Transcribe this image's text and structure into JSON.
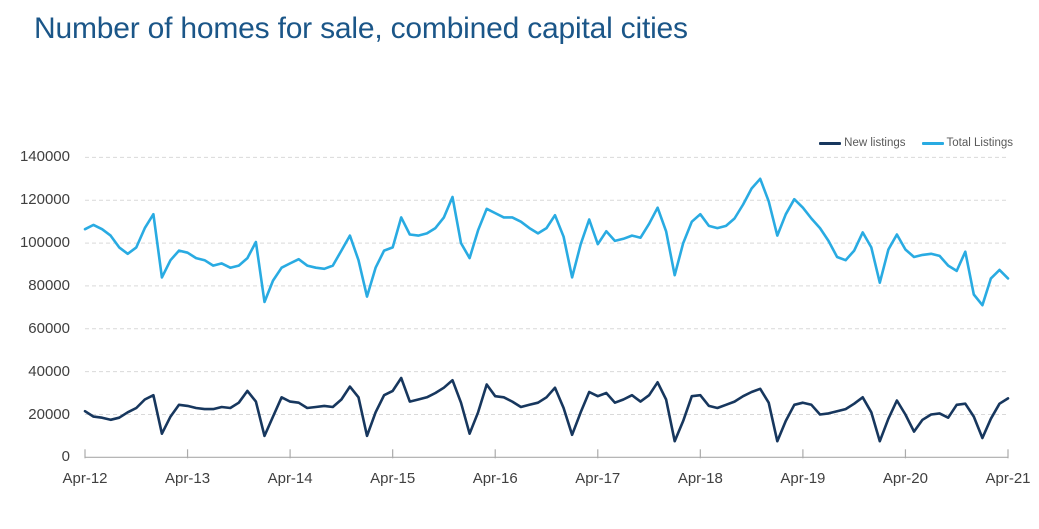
{
  "title": "Number of homes for sale, combined capital cities",
  "colors": {
    "title": "#1B5688",
    "axis_text": "#404040",
    "gridline": "#D9D9D9",
    "axis_line": "#ABABAB",
    "background": "#FFFFFF",
    "new_listings": "#17375E",
    "total_listings": "#29ABE2"
  },
  "legend": {
    "position": "top-right",
    "items": [
      {
        "label": "New listings",
        "color": "#17375E"
      },
      {
        "label": "Total Listings",
        "color": "#29ABE2"
      }
    ]
  },
  "chart_data": {
    "type": "line",
    "title": "Number of homes for sale, combined capital cities",
    "xlabel": "",
    "ylabel": "",
    "ylim": [
      0,
      140000
    ],
    "y_ticks": [
      0,
      20000,
      40000,
      60000,
      80000,
      100000,
      120000,
      140000
    ],
    "x_tick_labels": [
      "Apr-12",
      "Apr-13",
      "Apr-14",
      "Apr-15",
      "Apr-16",
      "Apr-17",
      "Apr-18",
      "Apr-19",
      "Apr-20",
      "Apr-21"
    ],
    "grid": "horizontal-dashed",
    "legend_position": "top-right",
    "x_months": [
      "Apr-12",
      "May-12",
      "Jun-12",
      "Jul-12",
      "Aug-12",
      "Sep-12",
      "Oct-12",
      "Nov-12",
      "Dec-12",
      "Jan-13",
      "Feb-13",
      "Mar-13",
      "Apr-13",
      "May-13",
      "Jun-13",
      "Jul-13",
      "Aug-13",
      "Sep-13",
      "Oct-13",
      "Nov-13",
      "Dec-13",
      "Jan-14",
      "Feb-14",
      "Mar-14",
      "Apr-14",
      "May-14",
      "Jun-14",
      "Jul-14",
      "Aug-14",
      "Sep-14",
      "Oct-14",
      "Nov-14",
      "Dec-14",
      "Jan-15",
      "Feb-15",
      "Mar-15",
      "Apr-15",
      "May-15",
      "Jun-15",
      "Jul-15",
      "Aug-15",
      "Sep-15",
      "Oct-15",
      "Nov-15",
      "Dec-15",
      "Jan-16",
      "Feb-16",
      "Mar-16",
      "Apr-16",
      "May-16",
      "Jun-16",
      "Jul-16",
      "Aug-16",
      "Sep-16",
      "Oct-16",
      "Nov-16",
      "Dec-16",
      "Jan-17",
      "Feb-17",
      "Mar-17",
      "Apr-17",
      "May-17",
      "Jun-17",
      "Jul-17",
      "Aug-17",
      "Sep-17",
      "Oct-17",
      "Nov-17",
      "Dec-17",
      "Jan-18",
      "Feb-18",
      "Mar-18",
      "Apr-18",
      "May-18",
      "Jun-18",
      "Jul-18",
      "Aug-18",
      "Sep-18",
      "Oct-18",
      "Nov-18",
      "Dec-18",
      "Jan-19",
      "Feb-19",
      "Mar-19",
      "Apr-19",
      "May-19",
      "Jun-19",
      "Jul-19",
      "Aug-19",
      "Sep-19",
      "Oct-19",
      "Nov-19",
      "Dec-19",
      "Jan-20",
      "Feb-20",
      "Mar-20",
      "Apr-20",
      "May-20",
      "Jun-20",
      "Jul-20",
      "Aug-20",
      "Sep-20",
      "Oct-20",
      "Nov-20",
      "Dec-20",
      "Jan-21",
      "Feb-21",
      "Mar-21",
      "Apr-21"
    ],
    "series": [
      {
        "name": "New listings",
        "color": "#17375E",
        "values": [
          21500,
          19000,
          18500,
          17500,
          18500,
          21000,
          23000,
          27000,
          29000,
          11000,
          19000,
          24500,
          24000,
          23000,
          22500,
          22500,
          23500,
          23000,
          25500,
          31000,
          26000,
          10000,
          19000,
          28000,
          26000,
          25500,
          23000,
          23500,
          24000,
          23500,
          27000,
          33000,
          28000,
          10000,
          21000,
          29000,
          31000,
          37000,
          26000,
          27000,
          28000,
          30000,
          32500,
          36000,
          25500,
          11000,
          21000,
          34000,
          28500,
          28000,
          26000,
          23500,
          24500,
          25500,
          28000,
          32500,
          23000,
          10500,
          21000,
          30500,
          28500,
          30000,
          25500,
          27000,
          29000,
          26000,
          29000,
          35000,
          27000,
          7500,
          17000,
          28500,
          29000,
          24000,
          23000,
          24500,
          26000,
          28500,
          30500,
          32000,
          25500,
          7500,
          17000,
          24500,
          25500,
          24500,
          20000,
          20500,
          21500,
          22500,
          25000,
          28000,
          21000,
          7500,
          18000,
          26500,
          20000,
          12000,
          17500,
          20000,
          20500,
          18500,
          24500,
          25000,
          19000,
          9000,
          18000,
          25000,
          27500
        ]
      },
      {
        "name": "Total Listings",
        "color": "#29ABE2",
        "values": [
          106500,
          108500,
          106500,
          103500,
          98000,
          95000,
          98000,
          107000,
          113500,
          84000,
          92000,
          96500,
          95500,
          93000,
          92000,
          89500,
          90500,
          88500,
          89500,
          93000,
          100500,
          72500,
          82500,
          88500,
          90500,
          92500,
          89500,
          88500,
          88000,
          89500,
          96500,
          103500,
          92000,
          75000,
          88500,
          96500,
          98000,
          112000,
          104000,
          103500,
          104500,
          107000,
          112000,
          121500,
          100000,
          93000,
          106000,
          116000,
          114000,
          112000,
          112000,
          110000,
          107000,
          104500,
          107000,
          113000,
          103000,
          84000,
          99500,
          111000,
          99500,
          105500,
          101000,
          102000,
          103500,
          102500,
          109000,
          116500,
          105500,
          85000,
          100000,
          110000,
          113500,
          108000,
          107000,
          108000,
          111500,
          118000,
          125500,
          130000,
          119500,
          103500,
          113500,
          120500,
          116500,
          111500,
          107000,
          101000,
          93500,
          92000,
          96500,
          105000,
          98000,
          81500,
          97000,
          104000,
          97000,
          93500,
          94500,
          95000,
          94000,
          89500,
          87000,
          96000,
          76000,
          71000,
          83500,
          87500,
          83500
        ]
      }
    ]
  }
}
